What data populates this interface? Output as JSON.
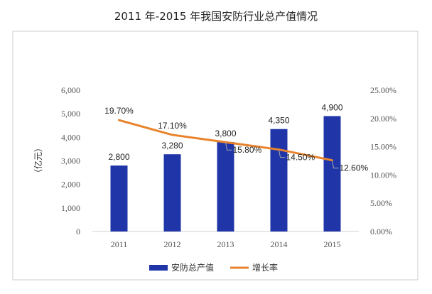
{
  "chart_data": {
    "type": "bar",
    "title": "2011 年-2015 年我国安防行业总产值情况",
    "categories": [
      "2011",
      "2012",
      "2013",
      "2014",
      "2015"
    ],
    "ylabel": "（亿元）",
    "ylim": [
      0,
      6000
    ],
    "y_ticks": [
      "0",
      "1,000",
      "2,000",
      "3,000",
      "4,000",
      "5,000",
      "6,000"
    ],
    "y2lim": [
      0,
      25
    ],
    "y2_ticks": [
      "0.00%",
      "5.00%",
      "10.00%",
      "15.00%",
      "20.00%",
      "25.00%"
    ],
    "grid": false,
    "legend_position": "bottom",
    "series": [
      {
        "name": "安防总产值",
        "type": "bar",
        "axis": "left",
        "color": "#1f35a8",
        "values": [
          2800,
          3280,
          3800,
          4350,
          4900
        ],
        "labels": [
          "2,800",
          "3,280",
          "3,800",
          "4,350",
          "4,900"
        ]
      },
      {
        "name": "增长率",
        "type": "line",
        "axis": "right",
        "color": "#e8832c",
        "values": [
          19.7,
          17.1,
          15.8,
          14.5,
          12.6
        ],
        "labels": [
          "19.70%",
          "17.10%",
          "15.80%",
          "14.50%",
          "12.60%"
        ]
      }
    ]
  }
}
